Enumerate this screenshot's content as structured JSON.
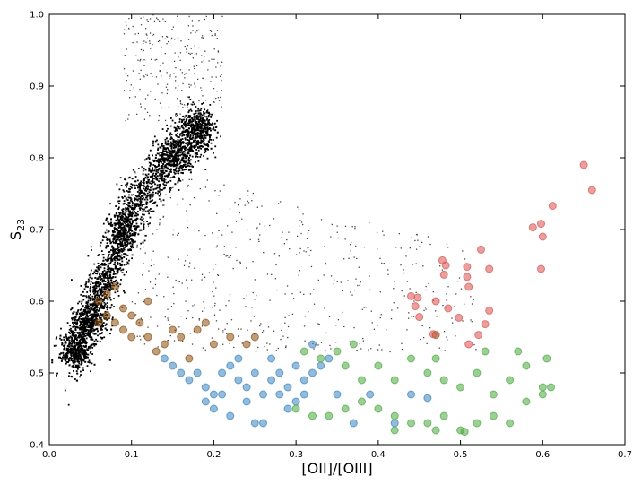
{
  "chart_data": {
    "type": "scatter",
    "title": "",
    "xlabel": "[OII]/[OIII]",
    "ylabel_main": "S",
    "ylabel_sub": "23",
    "xlim": [
      0.0,
      0.7
    ],
    "ylim": [
      0.4,
      1.0
    ],
    "x_ticks": [
      "0.0",
      "0.1",
      "0.2",
      "0.3",
      "0.4",
      "0.5",
      "0.6",
      "0.7"
    ],
    "y_ticks": [
      "0.4",
      "0.5",
      "0.6",
      "0.7",
      "0.8",
      "0.9",
      "1.0"
    ],
    "grid": false,
    "legend": "none",
    "colors": {
      "black": "#000000",
      "brown": "#8b4f0e",
      "blue": "#3a84bd",
      "green": "#4aa83e",
      "red": "#d9514e"
    },
    "series": [
      {
        "color": "black",
        "values_note_free": true,
        "ridge": [
          [
            0.028,
            0.52
          ],
          [
            0.04,
            0.56
          ],
          [
            0.06,
            0.61
          ],
          [
            0.08,
            0.67
          ],
          [
            0.1,
            0.73
          ],
          [
            0.13,
            0.78
          ],
          [
            0.16,
            0.82
          ],
          [
            0.19,
            0.85
          ]
        ],
        "regions": [
          [
            0.03,
            0.53
          ],
          [
            0.05,
            0.57
          ],
          [
            0.09,
            0.7
          ],
          [
            0.15,
            0.8
          ],
          [
            0.18,
            0.84
          ]
        ]
      },
      {
        "color": "brown",
        "points": [
          [
            0.06,
            0.6
          ],
          [
            0.07,
            0.58
          ],
          [
            0.08,
            0.57
          ],
          [
            0.09,
            0.56
          ],
          [
            0.1,
            0.55
          ],
          [
            0.12,
            0.55
          ],
          [
            0.14,
            0.54
          ],
          [
            0.16,
            0.55
          ],
          [
            0.18,
            0.56
          ],
          [
            0.2,
            0.54
          ],
          [
            0.22,
            0.55
          ],
          [
            0.24,
            0.54
          ],
          [
            0.07,
            0.61
          ],
          [
            0.08,
            0.62
          ],
          [
            0.11,
            0.57
          ],
          [
            0.13,
            0.53
          ],
          [
            0.15,
            0.56
          ],
          [
            0.17,
            0.52
          ],
          [
            0.19,
            0.57
          ],
          [
            0.25,
            0.55
          ],
          [
            0.47,
            0.553
          ],
          [
            0.09,
            0.59
          ],
          [
            0.1,
            0.58
          ],
          [
            0.12,
            0.6
          ],
          [
            0.06,
            0.57
          ]
        ]
      },
      {
        "color": "blue",
        "points": [
          [
            0.14,
            0.52
          ],
          [
            0.15,
            0.51
          ],
          [
            0.16,
            0.5
          ],
          [
            0.17,
            0.49
          ],
          [
            0.18,
            0.5
          ],
          [
            0.19,
            0.48
          ],
          [
            0.2,
            0.47
          ],
          [
            0.21,
            0.5
          ],
          [
            0.22,
            0.51
          ],
          [
            0.23,
            0.49
          ],
          [
            0.24,
            0.48
          ],
          [
            0.25,
            0.5
          ],
          [
            0.26,
            0.47
          ],
          [
            0.27,
            0.49
          ],
          [
            0.28,
            0.5
          ],
          [
            0.29,
            0.48
          ],
          [
            0.3,
            0.51
          ],
          [
            0.31,
            0.49
          ],
          [
            0.32,
            0.5
          ],
          [
            0.33,
            0.51
          ],
          [
            0.2,
            0.45
          ],
          [
            0.22,
            0.44
          ],
          [
            0.24,
            0.46
          ],
          [
            0.25,
            0.43
          ],
          [
            0.26,
            0.43
          ],
          [
            0.29,
            0.45
          ],
          [
            0.3,
            0.46
          ],
          [
            0.31,
            0.47
          ],
          [
            0.35,
            0.47
          ],
          [
            0.37,
            0.43
          ],
          [
            0.39,
            0.47
          ],
          [
            0.42,
            0.43
          ],
          [
            0.44,
            0.47
          ],
          [
            0.46,
            0.465
          ],
          [
            0.23,
            0.52
          ],
          [
            0.27,
            0.52
          ],
          [
            0.32,
            0.54
          ],
          [
            0.19,
            0.46
          ],
          [
            0.21,
            0.47
          ],
          [
            0.28,
            0.47
          ],
          [
            0.34,
            0.52
          ]
        ]
      },
      {
        "color": "green",
        "points": [
          [
            0.31,
            0.53
          ],
          [
            0.33,
            0.52
          ],
          [
            0.35,
            0.53
          ],
          [
            0.36,
            0.51
          ],
          [
            0.38,
            0.49
          ],
          [
            0.4,
            0.51
          ],
          [
            0.42,
            0.49
          ],
          [
            0.44,
            0.52
          ],
          [
            0.46,
            0.5
          ],
          [
            0.48,
            0.49
          ],
          [
            0.5,
            0.48
          ],
          [
            0.52,
            0.5
          ],
          [
            0.54,
            0.47
          ],
          [
            0.56,
            0.49
          ],
          [
            0.58,
            0.51
          ],
          [
            0.6,
            0.48
          ],
          [
            0.61,
            0.48
          ],
          [
            0.3,
            0.45
          ],
          [
            0.32,
            0.44
          ],
          [
            0.34,
            0.44
          ],
          [
            0.36,
            0.45
          ],
          [
            0.38,
            0.46
          ],
          [
            0.4,
            0.45
          ],
          [
            0.42,
            0.44
          ],
          [
            0.44,
            0.43
          ],
          [
            0.46,
            0.43
          ],
          [
            0.48,
            0.44
          ],
          [
            0.5,
            0.42
          ],
          [
            0.52,
            0.43
          ],
          [
            0.54,
            0.44
          ],
          [
            0.56,
            0.43
          ],
          [
            0.58,
            0.46
          ],
          [
            0.6,
            0.47
          ],
          [
            0.42,
            0.42
          ],
          [
            0.47,
            0.42
          ],
          [
            0.505,
            0.418
          ],
          [
            0.53,
            0.53
          ],
          [
            0.57,
            0.53
          ],
          [
            0.605,
            0.52
          ],
          [
            0.37,
            0.54
          ],
          [
            0.47,
            0.52
          ]
        ]
      },
      {
        "color": "red",
        "points": [
          [
            0.65,
            0.79
          ],
          [
            0.66,
            0.755
          ],
          [
            0.612,
            0.733
          ],
          [
            0.598,
            0.708
          ],
          [
            0.588,
            0.703
          ],
          [
            0.6,
            0.69
          ],
          [
            0.598,
            0.645
          ],
          [
            0.525,
            0.672
          ],
          [
            0.535,
            0.645
          ],
          [
            0.478,
            0.657
          ],
          [
            0.482,
            0.65
          ],
          [
            0.48,
            0.637
          ],
          [
            0.508,
            0.648
          ],
          [
            0.508,
            0.634
          ],
          [
            0.51,
            0.62
          ],
          [
            0.44,
            0.607
          ],
          [
            0.448,
            0.605
          ],
          [
            0.445,
            0.593
          ],
          [
            0.47,
            0.6
          ],
          [
            0.485,
            0.59
          ],
          [
            0.45,
            0.578
          ],
          [
            0.498,
            0.577
          ],
          [
            0.53,
            0.568
          ],
          [
            0.535,
            0.587
          ],
          [
            0.522,
            0.553
          ],
          [
            0.51,
            0.54
          ],
          [
            0.467,
            0.554
          ]
        ]
      }
    ]
  }
}
